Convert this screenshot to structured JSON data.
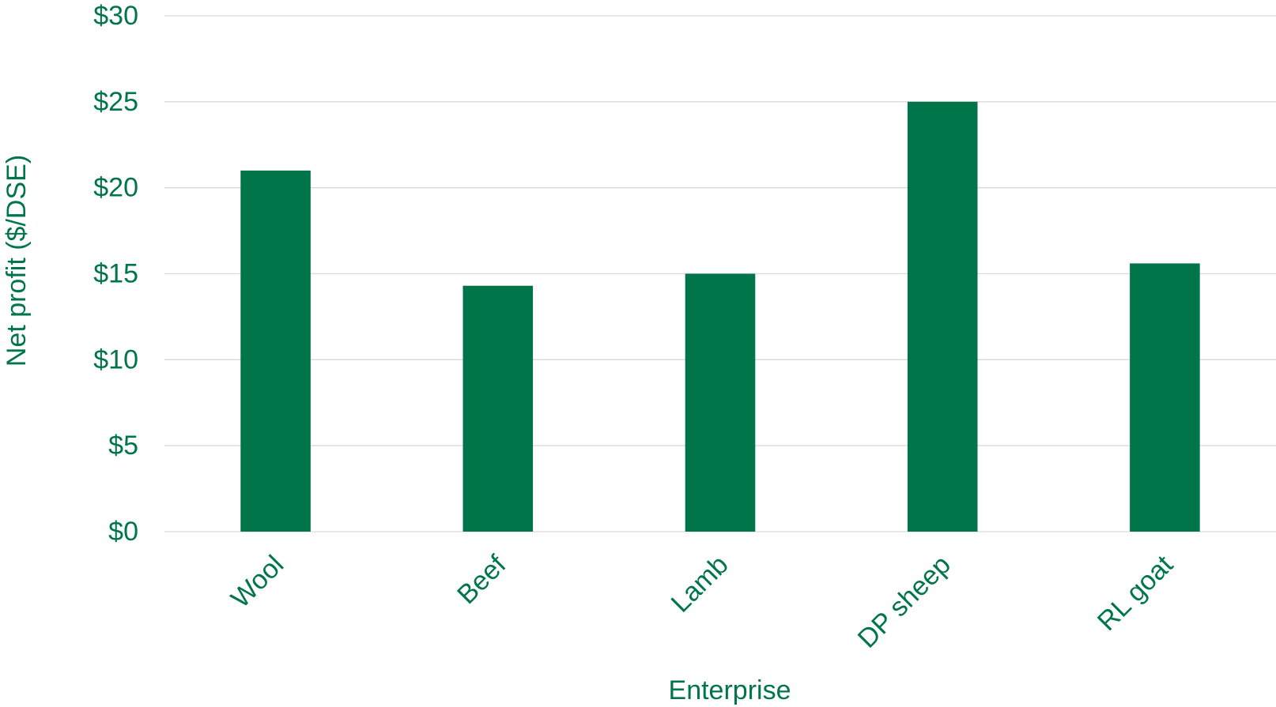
{
  "chart_data": {
    "type": "bar",
    "categories": [
      "Wool",
      "Beef",
      "Lamb",
      "DP sheep",
      "RL goat"
    ],
    "values": [
      21,
      14.3,
      15,
      25,
      15.6
    ],
    "xlabel": "Enterprise",
    "ylabel": "Net profit ($/DSE)",
    "ylim": [
      0,
      30
    ],
    "yticks": [
      0,
      5,
      10,
      15,
      20,
      25,
      30
    ],
    "ytick_labels": [
      "$0",
      "$5",
      "$10",
      "$15",
      "$20",
      "$25",
      "$30"
    ],
    "grid": true,
    "legend": "none",
    "colors": {
      "bar": "#00754a",
      "text": "#00754a",
      "grid": "#d9d9d9"
    }
  }
}
